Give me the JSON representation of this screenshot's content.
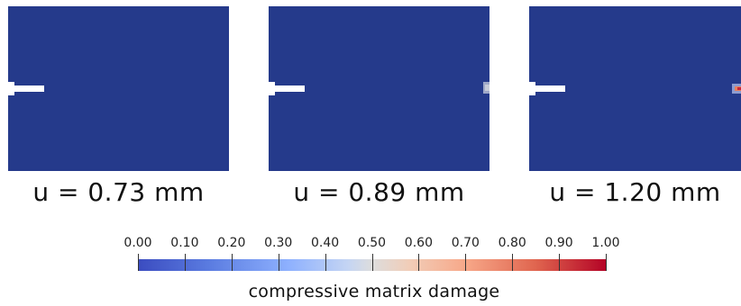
{
  "colors": {
    "undamaged": "#253A8B",
    "notch": "#ffffff",
    "cmap_low": "#3B4CC0",
    "cmap_mid": "#DDDDDD",
    "cmap_high": "#B40426"
  },
  "panels": [
    {
      "caption": "u = 0.73 mm",
      "damage_zone": "none"
    },
    {
      "caption": "u = 0.89 mm",
      "damage_zone": "faint-right-edge"
    },
    {
      "caption": "u = 1.20 mm",
      "damage_zone": "red-spot-right-edge"
    }
  ],
  "colorbar": {
    "title": "compressive matrix damage",
    "min": 0,
    "max": 1,
    "ticks": [
      "0.00",
      "0.10",
      "0.20",
      "0.30",
      "0.40",
      "0.50",
      "0.60",
      "0.70",
      "0.80",
      "0.90",
      "1.00"
    ]
  }
}
